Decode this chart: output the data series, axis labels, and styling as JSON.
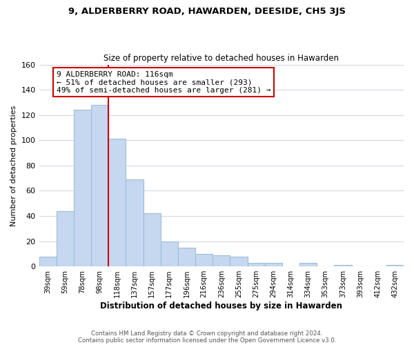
{
  "title": "9, ALDERBERRY ROAD, HAWARDEN, DEESIDE, CH5 3JS",
  "subtitle": "Size of property relative to detached houses in Hawarden",
  "xlabel": "Distribution of detached houses by size in Hawarden",
  "ylabel": "Number of detached properties",
  "bar_color": "#c5d8f0",
  "bar_edge_color": "#a0bcd8",
  "categories": [
    "39sqm",
    "59sqm",
    "78sqm",
    "98sqm",
    "118sqm",
    "137sqm",
    "157sqm",
    "177sqm",
    "196sqm",
    "216sqm",
    "236sqm",
    "255sqm",
    "275sqm",
    "294sqm",
    "314sqm",
    "334sqm",
    "353sqm",
    "373sqm",
    "393sqm",
    "412sqm",
    "432sqm"
  ],
  "values": [
    8,
    44,
    124,
    128,
    101,
    69,
    42,
    20,
    15,
    10,
    9,
    8,
    3,
    3,
    0,
    3,
    0,
    1,
    0,
    0,
    1
  ],
  "vline_x_idx": 3,
  "vline_color": "#cc0000",
  "annotation_line1": "9 ALDERBERRY ROAD: 116sqm",
  "annotation_line2": "← 51% of detached houses are smaller (293)",
  "annotation_line3": "49% of semi-detached houses are larger (281) →",
  "annotation_box_color": "#ffffff",
  "annotation_box_edge": "#cc0000",
  "ylim": [
    0,
    160
  ],
  "yticks": [
    0,
    20,
    40,
    60,
    80,
    100,
    120,
    140,
    160
  ],
  "footer1": "Contains HM Land Registry data © Crown copyright and database right 2024.",
  "footer2": "Contains public sector information licensed under the Open Government Licence v3.0.",
  "background_color": "#ffffff",
  "grid_color": "#d0d8e0"
}
